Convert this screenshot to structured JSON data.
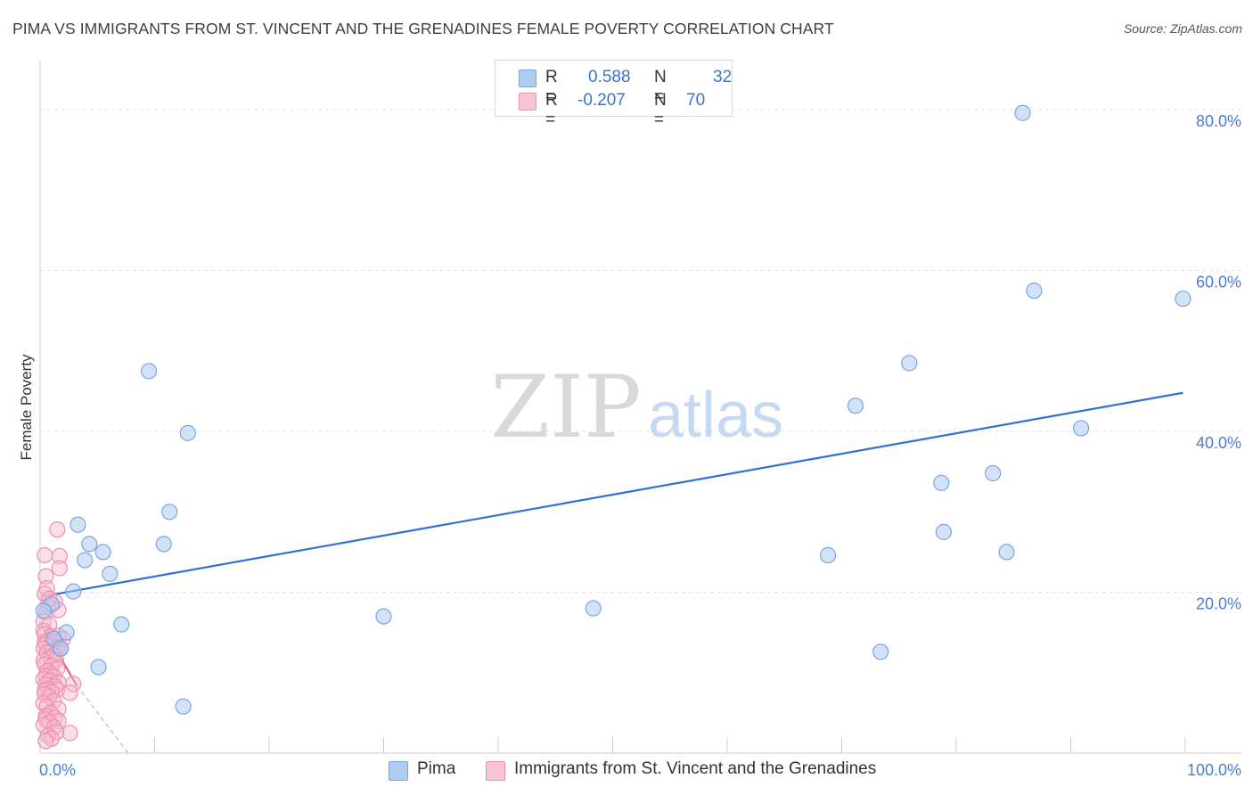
{
  "title": "PIMA VS IMMIGRANTS FROM ST. VINCENT AND THE GRENADINES FEMALE POVERTY CORRELATION CHART",
  "source": "Source: ZipAtlas.com",
  "watermark": {
    "zip": "ZIP",
    "atlas": "atlas"
  },
  "legend": {
    "pima": {
      "r_label": "R =",
      "r_value": "0.588",
      "n_label": "N =",
      "n_value": "32"
    },
    "svg": {
      "r_label": "R =",
      "r_value": "-0.207",
      "n_label": "N =",
      "n_value": "70"
    }
  },
  "colors": {
    "pima_fill": "#aecbf0",
    "pima_stroke": "#7aa6e0",
    "pima_line": "#2f72d0",
    "svg_fill": "#f7b8cb",
    "svg_stroke": "#ee8fae",
    "svg_line": "#e8608a",
    "axis_text": "#4a7fcf",
    "grid": "#e3e3e3"
  },
  "chart_data": {
    "type": "scatter",
    "title": "PIMA VS IMMIGRANTS FROM ST. VINCENT AND THE GRENADINES FEMALE POVERTY CORRELATION CHART",
    "xlabel": "",
    "ylabel": "Female Poverty",
    "xlim": [
      0,
      100
    ],
    "ylim": [
      0,
      85
    ],
    "x_tick_labels": [
      "0.0%",
      "100.0%"
    ],
    "y_ticks": [
      20,
      40,
      60,
      80
    ],
    "y_tick_labels": [
      "20.0%",
      "40.0%",
      "60.0%",
      "80.0%"
    ],
    "series": [
      {
        "name": "Pima",
        "points": [
          [
            85.8,
            79.6
          ],
          [
            86.8,
            57.5
          ],
          [
            99.8,
            56.5
          ],
          [
            75.9,
            48.5
          ],
          [
            9.5,
            47.5
          ],
          [
            71.2,
            43.2
          ],
          [
            90.9,
            40.4
          ],
          [
            12.9,
            39.8
          ],
          [
            83.2,
            34.8
          ],
          [
            78.7,
            33.6
          ],
          [
            11.3,
            30.0
          ],
          [
            3.3,
            28.4
          ],
          [
            78.9,
            27.5
          ],
          [
            4.3,
            26.0
          ],
          [
            10.8,
            26.0
          ],
          [
            5.5,
            25.0
          ],
          [
            84.4,
            25.0
          ],
          [
            68.8,
            24.6
          ],
          [
            3.9,
            24.0
          ],
          [
            6.1,
            22.3
          ],
          [
            2.9,
            20.1
          ],
          [
            1.0,
            18.5
          ],
          [
            48.3,
            18.0
          ],
          [
            30.0,
            17.0
          ],
          [
            7.1,
            16.0
          ],
          [
            2.3,
            15.0
          ],
          [
            1.2,
            14.2
          ],
          [
            1.8,
            13.0
          ],
          [
            73.4,
            12.6
          ],
          [
            5.1,
            10.7
          ],
          [
            12.5,
            5.8
          ],
          [
            0.3,
            17.7
          ]
        ],
        "trend": {
          "x": [
            0.3,
            99.8
          ],
          "y": [
            19.5,
            44.8
          ]
        }
      },
      {
        "name": "Immigrants from St. Vincent and the Grenadines",
        "points": [
          [
            1.5,
            27.8
          ],
          [
            0.4,
            24.6
          ],
          [
            1.7,
            24.5
          ],
          [
            1.7,
            23.0
          ],
          [
            0.5,
            22.0
          ],
          [
            0.6,
            20.5
          ],
          [
            0.4,
            19.8
          ],
          [
            0.8,
            19.2
          ],
          [
            1.3,
            18.8
          ],
          [
            0.7,
            18.3
          ],
          [
            0.5,
            17.5
          ],
          [
            1.6,
            17.8
          ],
          [
            0.3,
            16.4
          ],
          [
            0.8,
            16.0
          ],
          [
            0.3,
            15.2
          ],
          [
            0.4,
            14.8
          ],
          [
            1.0,
            14.5
          ],
          [
            1.6,
            14.6
          ],
          [
            2.0,
            14.2
          ],
          [
            0.7,
            14.0
          ],
          [
            0.4,
            13.8
          ],
          [
            1.3,
            13.8
          ],
          [
            0.5,
            13.5
          ],
          [
            0.9,
            13.3
          ],
          [
            1.5,
            13.2
          ],
          [
            0.3,
            13.0
          ],
          [
            1.1,
            12.8
          ],
          [
            1.7,
            13.1
          ],
          [
            0.6,
            12.5
          ],
          [
            1.2,
            12.2
          ],
          [
            0.9,
            11.8
          ],
          [
            1.4,
            11.6
          ],
          [
            0.3,
            11.5
          ],
          [
            0.4,
            11.0
          ],
          [
            1.0,
            10.8
          ],
          [
            1.5,
            10.5
          ],
          [
            0.6,
            10.2
          ],
          [
            0.9,
            9.8
          ],
          [
            0.5,
            9.6
          ],
          [
            1.2,
            9.5
          ],
          [
            0.3,
            9.2
          ],
          [
            0.8,
            9.0
          ],
          [
            1.6,
            8.8
          ],
          [
            2.9,
            8.6
          ],
          [
            0.5,
            8.5
          ],
          [
            1.3,
            8.3
          ],
          [
            0.7,
            8.0
          ],
          [
            0.4,
            7.8
          ],
          [
            1.5,
            7.9
          ],
          [
            1.0,
            7.6
          ],
          [
            0.4,
            7.3
          ],
          [
            2.6,
            7.5
          ],
          [
            0.8,
            7.0
          ],
          [
            1.2,
            6.5
          ],
          [
            0.3,
            6.2
          ],
          [
            0.6,
            5.8
          ],
          [
            1.6,
            5.5
          ],
          [
            0.9,
            5.0
          ],
          [
            0.5,
            4.6
          ],
          [
            1.3,
            4.4
          ],
          [
            0.5,
            4.2
          ],
          [
            1.6,
            4.0
          ],
          [
            0.8,
            3.8
          ],
          [
            0.3,
            3.5
          ],
          [
            1.2,
            3.2
          ],
          [
            2.6,
            2.5
          ],
          [
            1.4,
            2.6
          ],
          [
            0.7,
            2.2
          ],
          [
            1.0,
            1.8
          ],
          [
            0.5,
            1.5
          ]
        ],
        "trend": {
          "x": [
            0.3,
            3.2
          ],
          "y": [
            15.5,
            8.4
          ]
        },
        "trend_dashed": {
          "x": [
            3.2,
            7.7
          ],
          "y": [
            8.4,
            0.0
          ]
        }
      }
    ]
  },
  "bottom_legend": {
    "pima": "Pima",
    "svg": "Immigrants from St. Vincent and the Grenadines"
  }
}
